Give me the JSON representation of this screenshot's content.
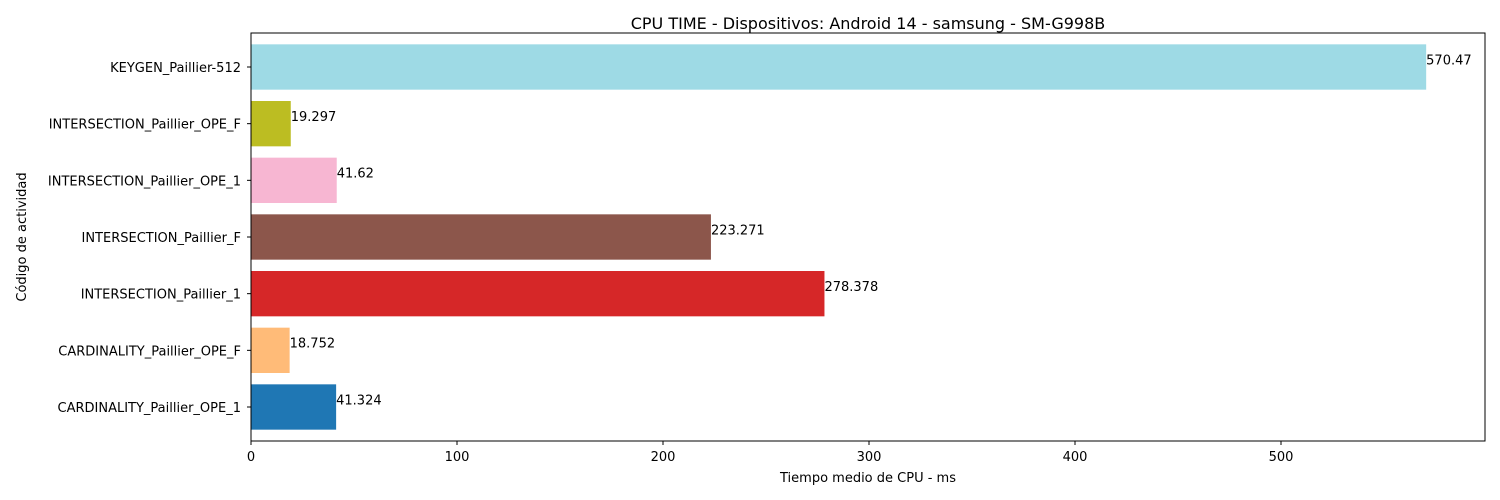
{
  "chart_data": {
    "type": "bar",
    "orientation": "horizontal",
    "title": "CPU TIME - Dispositivos: Android 14 - samsung - SM-G998B",
    "xlabel": "Tiempo medio de CPU - ms",
    "ylabel": "Código de actividad",
    "xlim": [
      0,
      600
    ],
    "xticks": [
      0,
      100,
      200,
      300,
      400,
      500
    ],
    "grid": false,
    "categories": [
      "CARDINALITY_Paillier_OPE_1",
      "CARDINALITY_Paillier_OPE_F",
      "INTERSECTION_Paillier_1",
      "INTERSECTION_Paillier_F",
      "INTERSECTION_Paillier_OPE_1",
      "INTERSECTION_Paillier_OPE_F",
      "KEYGEN_Paillier-512"
    ],
    "values": [
      41.324,
      18.752,
      278.378,
      223.271,
      41.62,
      19.297,
      570.47
    ],
    "value_labels": [
      "41.324",
      "18.752",
      "278.378",
      "223.271",
      "41.62",
      "19.297",
      "570.47"
    ],
    "colors": [
      "#1f77b4",
      "#ffbb78",
      "#d62728",
      "#8c564b",
      "#f7b6d2",
      "#bcbd22",
      "#9edae5"
    ]
  }
}
